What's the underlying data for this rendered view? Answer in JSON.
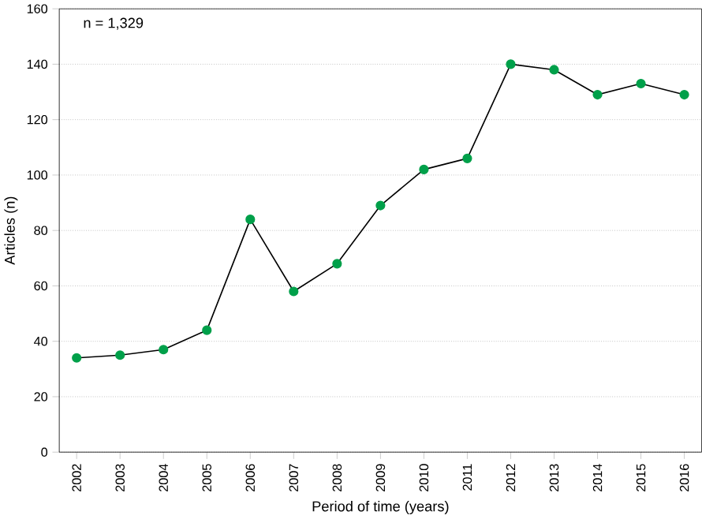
{
  "chart_data": {
    "type": "line",
    "xlabel": "Period of time (years)",
    "ylabel": "Articles (n)",
    "categories": [
      "2002",
      "2003",
      "2004",
      "2005",
      "2006",
      "2007",
      "2008",
      "2009",
      "2010",
      "2011",
      "2012",
      "2013",
      "2014",
      "2015",
      "2016"
    ],
    "series": [
      {
        "color": "#00a04a",
        "values": [
          34,
          35,
          37,
          44,
          84,
          58,
          68,
          89,
          102,
          106,
          140,
          138,
          129,
          133,
          129
        ]
      }
    ],
    "ylim": [
      0,
      160
    ],
    "yticks": [
      0,
      20,
      40,
      60,
      80,
      100,
      120,
      140,
      160
    ],
    "grid": "y",
    "marker": "circle",
    "line_style": "solid",
    "annotations": [
      "n = 1,329"
    ]
  }
}
